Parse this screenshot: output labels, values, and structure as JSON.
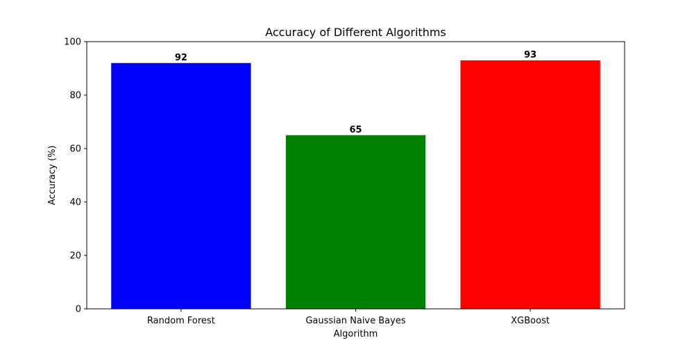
{
  "chart_data": {
    "type": "bar",
    "title": "Accuracy of Different Algorithms",
    "xlabel": "Algorithm",
    "ylabel": "Accuracy (%)",
    "categories": [
      "Random Forest",
      "Gaussian Naive Bayes",
      "XGBoost"
    ],
    "values": [
      92,
      65,
      93
    ],
    "colors": [
      "#0000ff",
      "#008000",
      "#ff0000"
    ],
    "ylim": [
      0,
      100
    ],
    "yticks": [
      0,
      20,
      40,
      60,
      80,
      100
    ],
    "grid": false,
    "legend": "none"
  }
}
